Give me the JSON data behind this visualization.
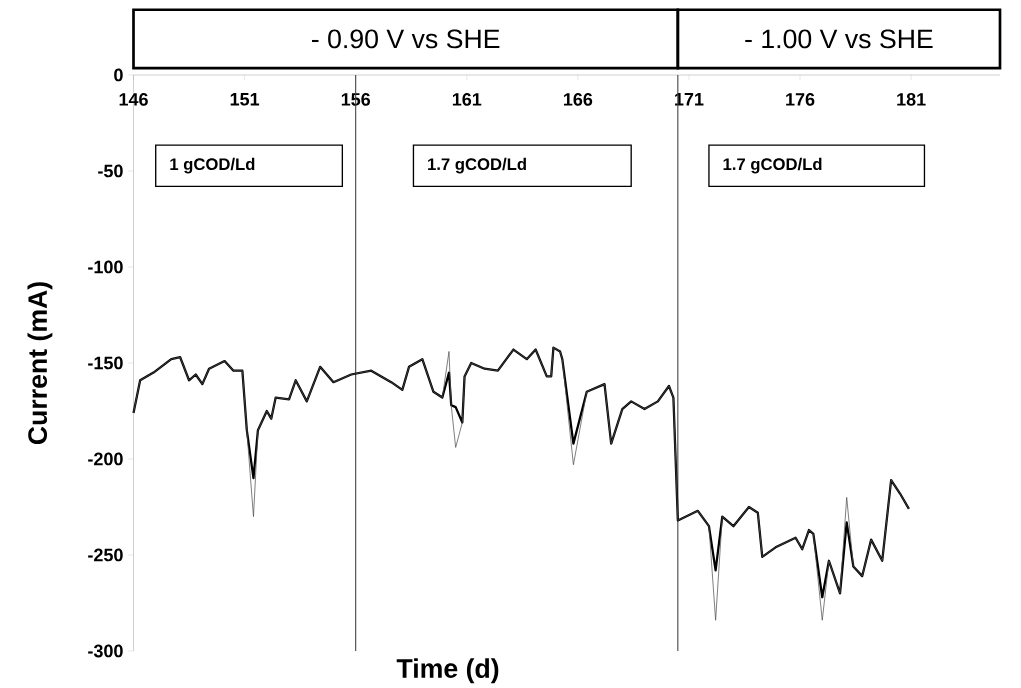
{
  "chart_data": {
    "type": "line",
    "xlabel": "Time (d)",
    "ylabel": "Current (mA)",
    "annotations": [
      "- 0.90 V vs SHE",
      "- 1.00 V vs SHE",
      "1 gCOD/Ld",
      "1.7 gCOD/Ld",
      "1.7 gCOD/Ld"
    ],
    "x": [
      146.0,
      146.3,
      146.9,
      147.7,
      148.1,
      148.5,
      148.8,
      149.1,
      149.4,
      150.1,
      150.5,
      150.9,
      151.1,
      151.4,
      151.6,
      152.0,
      152.2,
      152.4,
      153.0,
      153.3,
      153.8,
      154.4,
      155.0,
      155.8,
      156.7,
      157.6,
      158.1,
      158.4,
      159.0,
      159.5,
      159.9,
      160.2,
      160.3,
      160.5,
      160.8,
      160.9,
      161.2,
      161.8,
      162.4,
      163.1,
      163.7,
      164.1,
      164.6,
      164.8,
      164.9,
      165.2,
      165.3,
      165.8,
      166.4,
      167.2,
      167.5,
      168.0,
      168.4,
      169.0,
      169.6,
      170.1,
      170.3,
      170.5,
      171.4,
      171.9,
      172.2,
      172.5,
      173.0,
      173.7,
      174.1,
      174.3,
      174.9,
      175.8,
      176.1,
      176.4,
      176.6,
      177.0,
      177.3,
      177.8,
      178.1,
      178.4,
      178.8,
      179.2,
      179.7,
      180.1,
      180.5,
      180.9
    ],
    "series": [
      {
        "color": "#000000",
        "values": [
          -176,
          -159,
          -155,
          -148,
          -147,
          -159,
          -156,
          -161,
          -153,
          -149,
          -154,
          -154,
          -185,
          -210,
          -185,
          -175,
          -179,
          -168,
          -169,
          -159,
          -170,
          -152,
          -160,
          -156,
          -154,
          -160,
          -164,
          -152,
          -148,
          -165,
          -168,
          -155,
          -172,
          -173,
          -181,
          -157,
          -150,
          -153,
          -154,
          -143,
          -148,
          -143,
          -157,
          -157,
          -142,
          -144,
          -148,
          -192,
          -165,
          -161,
          -192,
          -174,
          -170,
          -174,
          -170,
          -162,
          -168,
          -232,
          -227,
          -235,
          -258,
          -230,
          -235,
          -225,
          -228,
          -251,
          -246,
          -241,
          -247,
          -237,
          -239,
          -272,
          -253,
          -270,
          -233,
          -256,
          -261,
          -242,
          -253,
          -211,
          -218,
          -226
        ]
      },
      {
        "color": "#505050",
        "values": [
          -176,
          -159,
          -155,
          -148,
          -147,
          -159,
          -156,
          -161,
          -153,
          -149,
          -154,
          -154,
          -185,
          -230,
          -185,
          -175,
          -179,
          -168,
          -169,
          -159,
          -170,
          -152,
          -160,
          -156,
          -154,
          -160,
          -164,
          -152,
          -148,
          -165,
          -168,
          -144,
          -172,
          -194,
          -181,
          -157,
          -150,
          -153,
          -154,
          -143,
          -148,
          -143,
          -157,
          -157,
          -142,
          -144,
          -148,
          -203,
          -165,
          -161,
          -192,
          -174,
          -170,
          -174,
          -170,
          -162,
          -168,
          -232,
          -227,
          -235,
          -284,
          -230,
          -235,
          -225,
          -228,
          -251,
          -246,
          -241,
          -247,
          -237,
          -239,
          -284,
          -253,
          -270,
          -220,
          -256,
          -261,
          -242,
          -253,
          -211,
          -218,
          -226
        ]
      }
    ],
    "xlim": [
      146,
      185
    ],
    "ylim": [
      -300,
      0
    ],
    "xticks": [
      146,
      151,
      156,
      161,
      166,
      171,
      176,
      181
    ],
    "yticks": [
      -300,
      -250,
      -200,
      -150,
      -100,
      -50,
      0
    ],
    "ref_lines": [
      {
        "axis": "x",
        "value": 156,
        "color": "#404040"
      },
      {
        "axis": "x",
        "value": 170.5,
        "color": "#404040"
      }
    ],
    "marker": "none",
    "line_style": "solid"
  }
}
